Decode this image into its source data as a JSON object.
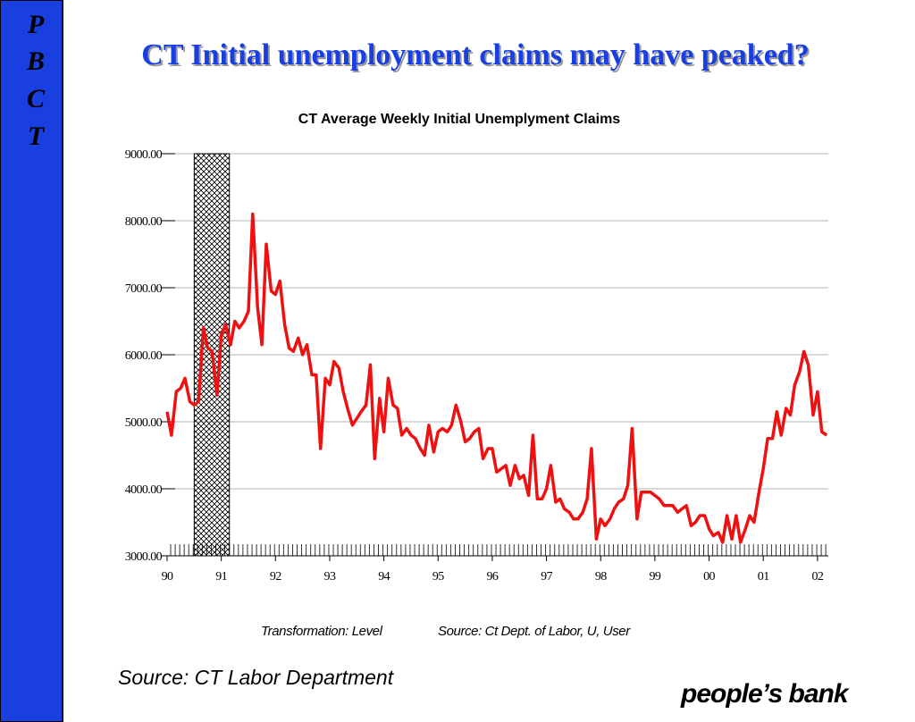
{
  "slide": {
    "sidebar": [
      "P",
      "B",
      "C",
      "T"
    ],
    "title": "CT Initial unemployment claims may have peaked?",
    "source": "Source: CT Labor Department",
    "logo": "people’s bank"
  },
  "chart_data": {
    "type": "line",
    "title": "CT Average Weekly Initial Unemplyment Claims",
    "notes": [
      "Transformation: Level",
      "Source: Ct Dept. of Labor, U, User"
    ],
    "color": "#ee1111",
    "shaded_range": [
      1990.5,
      1991.15
    ],
    "xlim": [
      1990,
      2002.2
    ],
    "xticks": [
      {
        "value": 1990,
        "label": "90"
      },
      {
        "value": 1991,
        "label": "91"
      },
      {
        "value": 1992,
        "label": "92"
      },
      {
        "value": 1993,
        "label": "93"
      },
      {
        "value": 1994,
        "label": "94"
      },
      {
        "value": 1995,
        "label": "95"
      },
      {
        "value": 1996,
        "label": "96"
      },
      {
        "value": 1997,
        "label": "97"
      },
      {
        "value": 1998,
        "label": "98"
      },
      {
        "value": 1999,
        "label": "99"
      },
      {
        "value": 2000,
        "label": "00"
      },
      {
        "value": 2001,
        "label": "01"
      },
      {
        "value": 2002,
        "label": "02"
      }
    ],
    "ylim": [
      3000,
      9000
    ],
    "yticks": [
      {
        "value": 3000,
        "label": "3000.00"
      },
      {
        "value": 4000,
        "label": "4000.00"
      },
      {
        "value": 5000,
        "label": "5000.00"
      },
      {
        "value": 6000,
        "label": "6000.00"
      },
      {
        "value": 7000,
        "label": "7000.00"
      },
      {
        "value": 8000,
        "label": "8000.00"
      },
      {
        "value": 9000,
        "label": "9000.00"
      }
    ],
    "grid": true,
    "x": [
      1990,
      1990.08,
      1990.17,
      1990.25,
      1990.33,
      1990.42,
      1990.5,
      1990.58,
      1990.67,
      1990.75,
      1990.83,
      1990.92,
      1991,
      1991.08,
      1991.17,
      1991.25,
      1991.33,
      1991.42,
      1991.5,
      1991.58,
      1991.67,
      1991.75,
      1991.83,
      1991.92,
      1992,
      1992.08,
      1992.17,
      1992.25,
      1992.33,
      1992.42,
      1992.5,
      1992.58,
      1992.67,
      1992.75,
      1992.83,
      1992.92,
      1993,
      1993.08,
      1993.17,
      1993.25,
      1993.33,
      1993.42,
      1993.5,
      1993.58,
      1993.67,
      1993.75,
      1993.83,
      1993.92,
      1994,
      1994.08,
      1994.17,
      1994.25,
      1994.33,
      1994.42,
      1994.5,
      1994.58,
      1994.67,
      1994.75,
      1994.83,
      1994.92,
      1995,
      1995.08,
      1995.17,
      1995.25,
      1995.33,
      1995.42,
      1995.5,
      1995.58,
      1995.67,
      1995.75,
      1995.83,
      1995.92,
      1996,
      1996.08,
      1996.17,
      1996.25,
      1996.33,
      1996.42,
      1996.5,
      1996.58,
      1996.67,
      1996.75,
      1996.83,
      1996.92,
      1997,
      1997.08,
      1997.17,
      1997.25,
      1997.33,
      1997.42,
      1997.5,
      1997.58,
      1997.67,
      1997.75,
      1997.83,
      1997.92,
      1998,
      1998.08,
      1998.17,
      1998.25,
      1998.33,
      1998.42,
      1998.5,
      1998.58,
      1998.67,
      1998.75,
      1998.83,
      1998.92,
      1999,
      1999.08,
      1999.17,
      1999.25,
      1999.33,
      1999.42,
      1999.5,
      1999.58,
      1999.67,
      1999.75,
      1999.83,
      1999.92,
      2000,
      2000.08,
      2000.17,
      2000.25,
      2000.33,
      2000.42,
      2000.5,
      2000.58,
      2000.67,
      2000.75,
      2000.83,
      2000.92,
      2001,
      2001.08,
      2001.17,
      2001.25,
      2001.33,
      2001.42,
      2001.5,
      2001.58,
      2001.67,
      2001.75,
      2001.83,
      2001.92,
      2002,
      2002.08,
      2002.17
    ],
    "values": [
      5150,
      4800,
      5450,
      5500,
      5650,
      5300,
      5250,
      5300,
      6400,
      6100,
      6050,
      5400,
      6300,
      6450,
      6150,
      6500,
      6400,
      6500,
      6650,
      8100,
      6700,
      6150,
      7650,
      6950,
      6900,
      7100,
      6450,
      6100,
      6050,
      6250,
      6000,
      6150,
      5700,
      5700,
      4600,
      5650,
      5550,
      5900,
      5800,
      5450,
      5200,
      4950,
      5050,
      5150,
      5250,
      5850,
      4450,
      5350,
      4850,
      5650,
      5250,
      5200,
      4800,
      4900,
      4800,
      4750,
      4600,
      4500,
      4950,
      4550,
      4850,
      4900,
      4850,
      4950,
      5250,
      5000,
      4700,
      4750,
      4850,
      4900,
      4450,
      4600,
      4600,
      4250,
      4300,
      4350,
      4050,
      4350,
      4150,
      4200,
      3900,
      4800,
      3850,
      3850,
      4000,
      4350,
      3800,
      3850,
      3700,
      3650,
      3550,
      3550,
      3650,
      3850,
      4600,
      3250,
      3550,
      3450,
      3550,
      3700,
      3800,
      3850,
      4050,
      4900,
      3550,
      3950,
      3950,
      3950,
      3900,
      3850,
      3750,
      3750,
      3750,
      3650,
      3700,
      3750,
      3450,
      3500,
      3600,
      3600,
      3400,
      3300,
      3350,
      3200,
      3600,
      3250,
      3600,
      3200,
      3400,
      3600,
      3500,
      3950,
      4300,
      4750,
      4750,
      5150,
      4800,
      5200,
      5100,
      5550,
      5750,
      6050,
      5850,
      5100,
      5450,
      4850,
      4800
    ]
  }
}
